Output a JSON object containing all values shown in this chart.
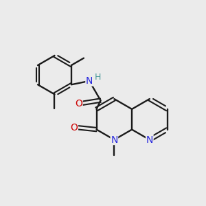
{
  "background_color": "#ebebeb",
  "bond_color": "#1a1a1a",
  "N_color": "#2222dd",
  "NH_color": "#4a9a9a",
  "O_color": "#cc0000",
  "figsize": [
    3.0,
    3.0
  ],
  "dpi": 100,
  "xlim": [
    0,
    10
  ],
  "ylim": [
    0,
    10
  ]
}
